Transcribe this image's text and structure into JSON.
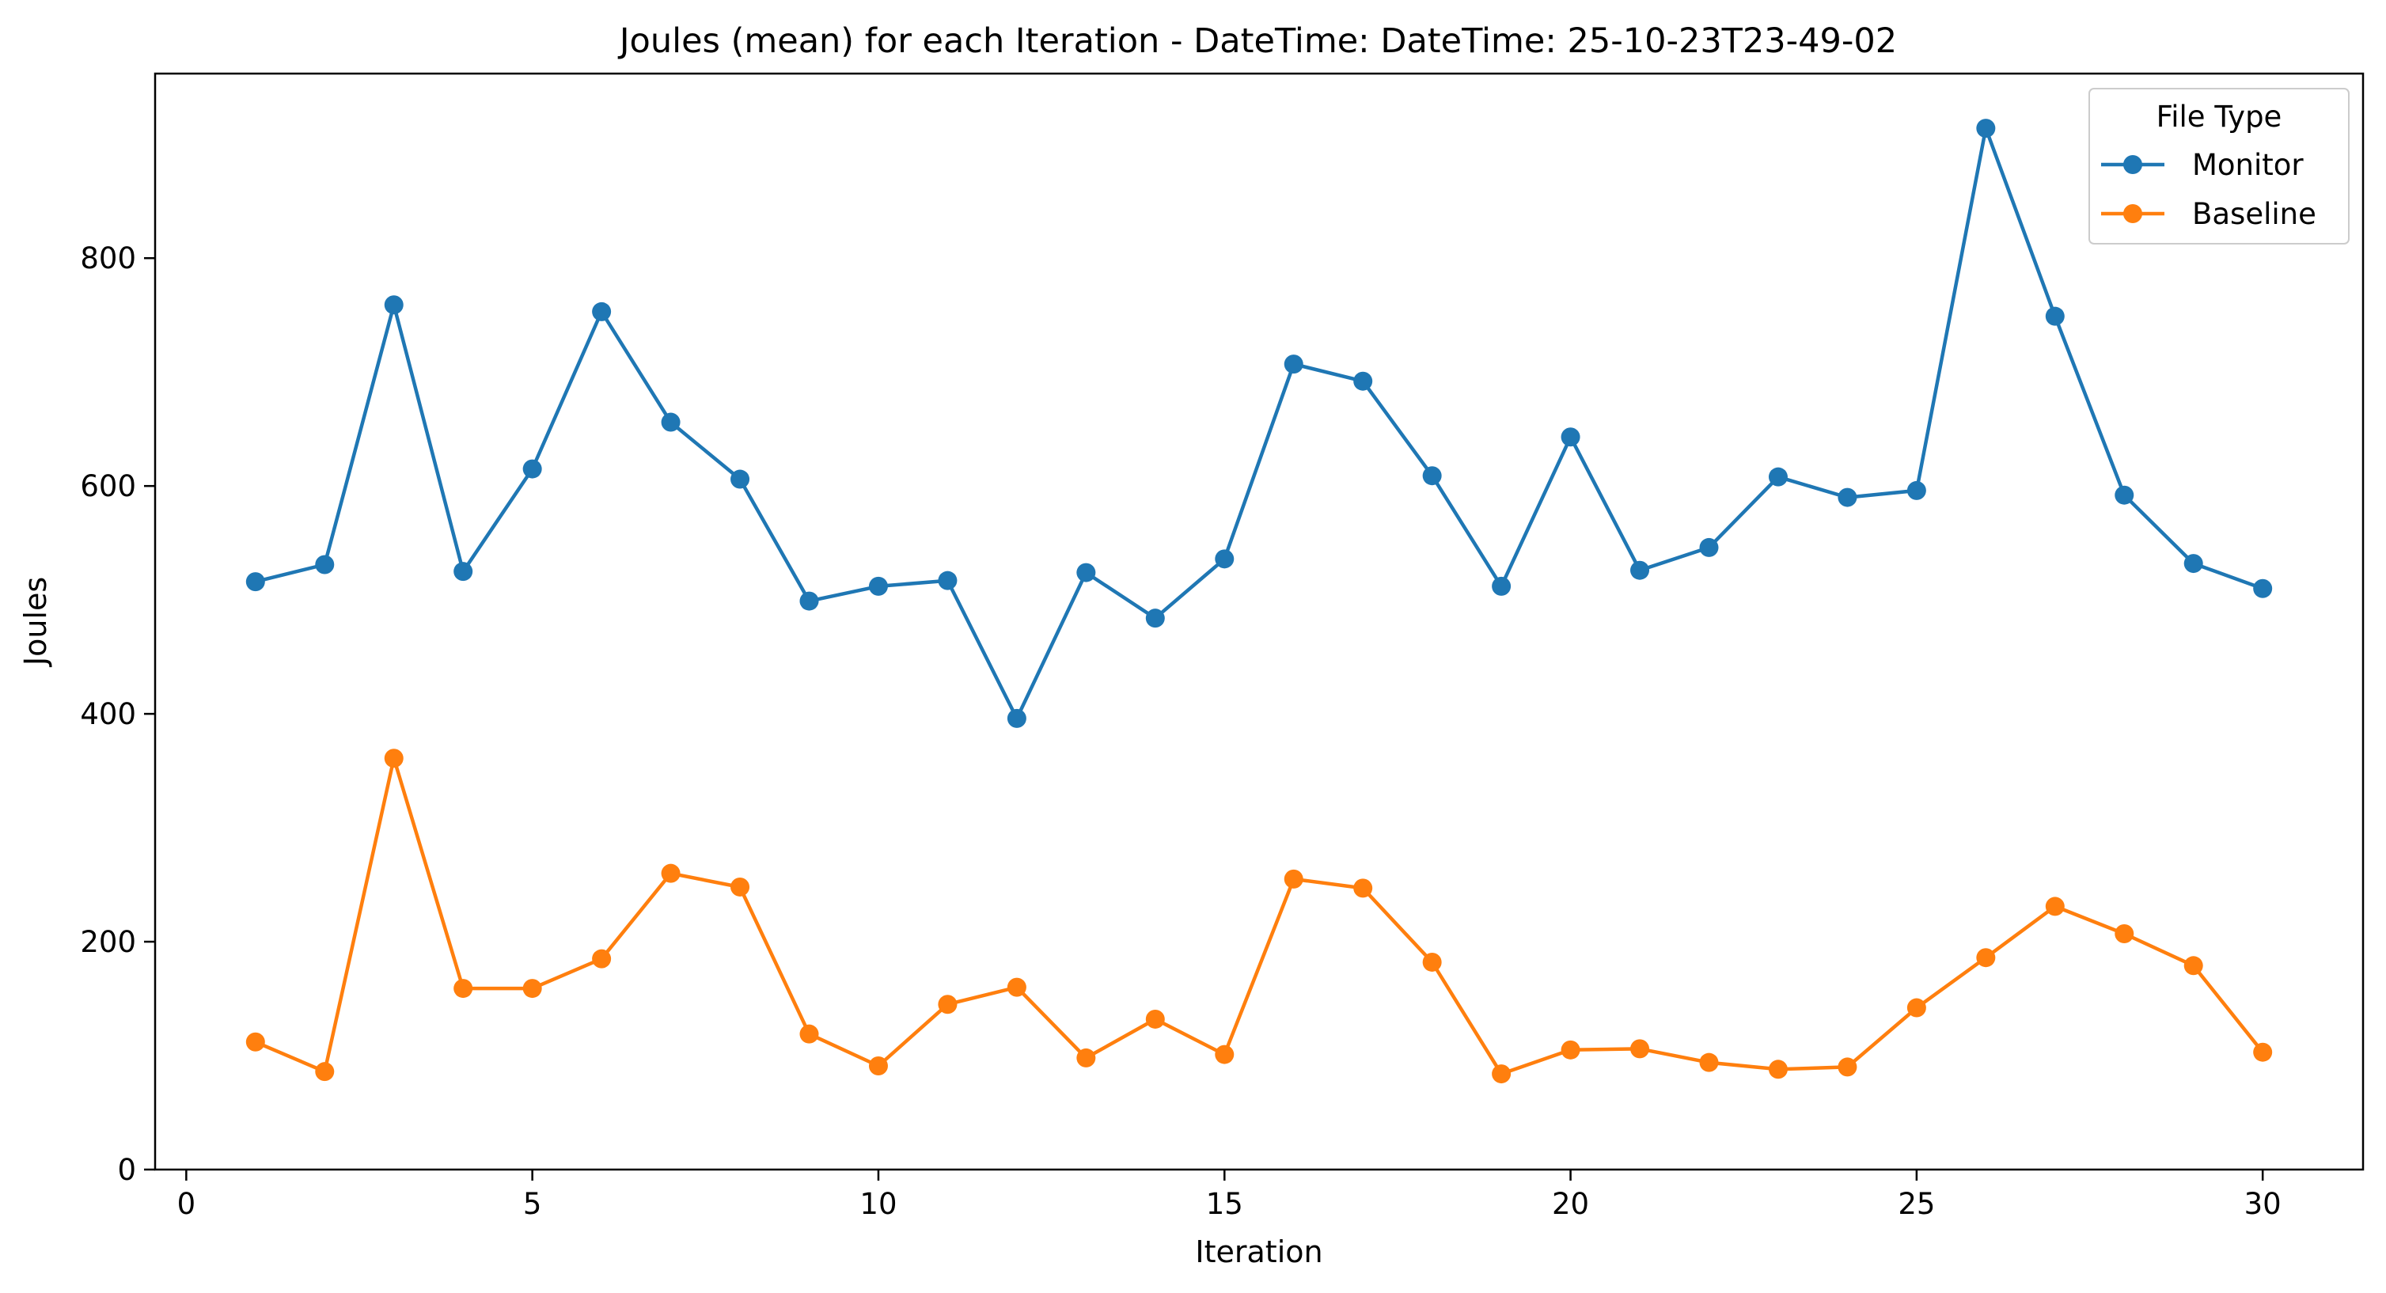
{
  "chart_data": {
    "type": "line",
    "title": "Joules (mean) for each Iteration - DateTime: DateTime: 25-10-23T23-49-02",
    "xlabel": "Iteration",
    "ylabel": "Joules",
    "xlim": [
      -0.45,
      31.45
    ],
    "ylim": [
      0,
      962
    ],
    "xticks": [
      0,
      5,
      10,
      15,
      20,
      25,
      30
    ],
    "yticks": [
      0,
      200,
      400,
      600,
      800
    ],
    "grid": false,
    "legend": {
      "title": "File Type",
      "position": "top-right"
    },
    "x": [
      1,
      2,
      3,
      4,
      5,
      6,
      7,
      8,
      9,
      10,
      11,
      12,
      13,
      14,
      15,
      16,
      17,
      18,
      19,
      20,
      21,
      22,
      23,
      24,
      25,
      26,
      27,
      28,
      29,
      30
    ],
    "series": [
      {
        "name": "Monitor",
        "color": "#1f77b4",
        "marker": "circle",
        "values": [
          516,
          531,
          759,
          525,
          615,
          753,
          656,
          606,
          499,
          512,
          517,
          396,
          524,
          484,
          536,
          707,
          692,
          609,
          512,
          643,
          526,
          546,
          608,
          590,
          596,
          914,
          749,
          592,
          532,
          510
        ]
      },
      {
        "name": "Baseline",
        "color": "#ff7f0e",
        "marker": "circle",
        "values": [
          112,
          86,
          361,
          159,
          159,
          185,
          260,
          248,
          119,
          91,
          145,
          160,
          98,
          132,
          101,
          255,
          247,
          182,
          84,
          105,
          106,
          94,
          88,
          90,
          142,
          186,
          231,
          207,
          179,
          103
        ]
      }
    ]
  }
}
